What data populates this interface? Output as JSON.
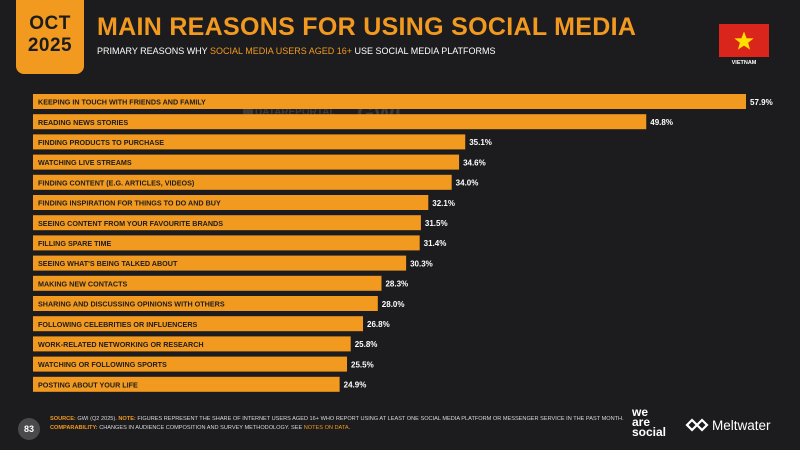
{
  "header": {
    "month": "OCT",
    "year": "2025",
    "title": "MAIN REASONS FOR USING SOCIAL MEDIA",
    "subtitle_pre": "PRIMARY REASONS WHY ",
    "subtitle_highlight": "SOCIAL MEDIA USERS AGED 16+",
    "subtitle_post": " USE SOCIAL MEDIA PLATFORMS",
    "country": "VIETNAM"
  },
  "watermark": {
    "datareportal": "DATAREPORTAL",
    "gwi": "GWI."
  },
  "chart_data": {
    "type": "bar",
    "orientation": "horizontal",
    "categories": [
      "KEEPING IN TOUCH WITH FRIENDS AND FAMILY",
      "READING NEWS STORIES",
      "FINDING PRODUCTS TO PURCHASE",
      "WATCHING LIVE STREAMS",
      "FINDING CONTENT (E.G. ARTICLES, VIDEOS)",
      "FINDING INSPIRATION FOR THINGS TO DO AND BUY",
      "SEEING CONTENT FROM YOUR FAVOURITE BRANDS",
      "FILLING SPARE TIME",
      "SEEING WHAT'S BEING TALKED ABOUT",
      "MAKING NEW CONTACTS",
      "SHARING AND DISCUSSING OPINIONS WITH OTHERS",
      "FOLLOWING CELEBRITIES OR INFLUENCERS",
      "WORK-RELATED NETWORKING OR RESEARCH",
      "WATCHING OR FOLLOWING SPORTS",
      "POSTING ABOUT YOUR LIFE"
    ],
    "values": [
      57.9,
      49.8,
      35.1,
      34.6,
      34.0,
      32.1,
      31.5,
      31.4,
      30.3,
      28.3,
      28.0,
      26.8,
      25.8,
      25.5,
      24.9
    ],
    "value_labels": [
      "57.9%",
      "49.8%",
      "35.1%",
      "34.6%",
      "34.0%",
      "32.1%",
      "31.5%",
      "31.4%",
      "30.3%",
      "28.3%",
      "28.0%",
      "26.8%",
      "25.8%",
      "25.5%",
      "24.9%"
    ],
    "xlim": [
      0,
      57.9
    ],
    "bar_color": "#f29a1f",
    "grid": false,
    "legend": "none"
  },
  "footer": {
    "page_number": "83",
    "source_key": "SOURCE:",
    "source_text": " GWI (Q2 2025). ",
    "note_key": "NOTE:",
    "note_text": " FIGURES REPRESENT THE SHARE OF INTERNET USERS AGED 16+ WHO REPORT USING AT LEAST ONE SOCIAL MEDIA PLATFORM OR MESSENGER SERVICE IN THE PAST MONTH.",
    "comparability_key": "COMPARABILITY:",
    "comparability_text": " CHANGES IN AUDIENCE COMPOSITION AND SURVEY METHODOLOGY. SEE ",
    "comparability_link": "NOTES ON DATA",
    "comparability_end": ".",
    "brand1_line1": "we",
    "brand1_line2": "are",
    "brand1_line3": "social",
    "brand2": "Meltwater"
  },
  "colors": {
    "accent": "#f29a1f",
    "background": "#1c1c1e",
    "flag_red": "#da251d",
    "flag_star": "#ffde00"
  }
}
